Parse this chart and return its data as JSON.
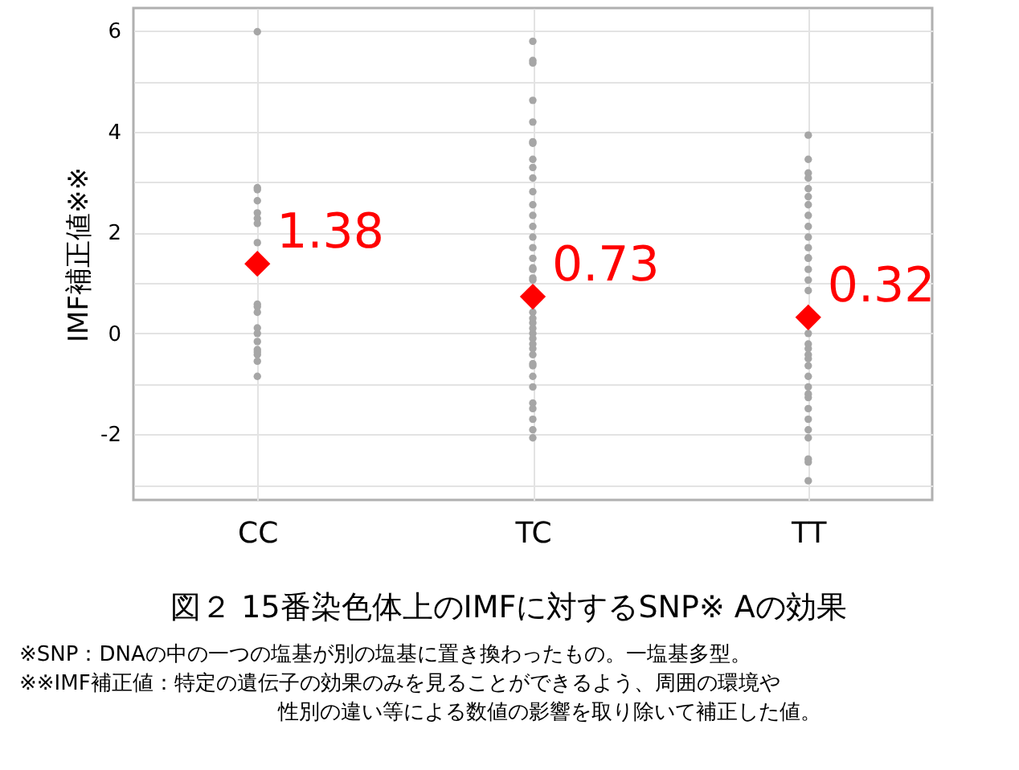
{
  "chart_data": {
    "type": "scatter",
    "title": "図２ 15番染色体上のIMFに対するSNP※ Aの効果",
    "ylabel": "IMF補正値※※",
    "categories": [
      "CC",
      "TC",
      "TT"
    ],
    "ylim": [
      -3.3,
      6.45
    ],
    "yticks": [
      {
        "value": -3,
        "label": null
      },
      -2,
      {
        "value": -1,
        "label": null
      },
      0,
      {
        "value": 1,
        "label": null
      },
      2,
      {
        "value": 3,
        "label": null
      },
      4,
      {
        "value": 5,
        "label": null
      },
      6
    ],
    "grid": true,
    "series": [
      {
        "color": "#a6a6a6",
        "marker": "circle",
        "x": [
          "CC",
          "CC",
          "CC",
          "CC",
          "CC",
          "CC",
          "CC",
          "CC",
          "CC",
          "CC",
          "CC",
          "CC",
          "CC",
          "CC",
          "CC",
          "CC",
          "CC",
          "CC",
          "CC",
          "TC",
          "TC",
          "TC",
          "TC",
          "TC",
          "TC",
          "TC",
          "TC",
          "TC",
          "TC",
          "TC",
          "TC",
          "TC",
          "TC",
          "TC",
          "TC",
          "TC",
          "TC",
          "TC",
          "TC",
          "TC",
          "TC",
          "TC",
          "TC",
          "TC",
          "TC",
          "TC",
          "TC",
          "TC",
          "TC",
          "TC",
          "TC",
          "TC",
          "TC",
          "TC",
          "TC",
          "TC",
          "TC",
          "TC",
          "TT",
          "TT",
          "TT",
          "TT",
          "TT",
          "TT",
          "TT",
          "TT",
          "TT",
          "TT",
          "TT",
          "TT",
          "TT",
          "TT",
          "TT",
          "TT",
          "TT",
          "TT",
          "TT",
          "TT",
          "TT",
          "TT",
          "TT",
          "TT",
          "TT",
          "TT",
          "TT",
          "TT",
          "TT",
          "TT",
          "TT",
          "TT",
          "TT"
        ],
        "values": [
          5.98,
          2.89,
          2.85,
          2.63,
          2.39,
          2.28,
          2.18,
          1.8,
          0.58,
          0.53,
          0.42,
          0.11,
          0.0,
          -0.16,
          -0.32,
          -0.37,
          -0.42,
          -0.55,
          -0.85,
          5.79,
          5.41,
          5.36,
          4.62,
          4.19,
          3.8,
          3.77,
          3.45,
          3.29,
          3.08,
          2.81,
          2.55,
          2.34,
          2.12,
          1.91,
          1.7,
          1.49,
          1.27,
          1.06,
          0.42,
          0.21,
          0.0,
          -0.21,
          -0.42,
          -0.64,
          -0.85,
          -1.06,
          -1.38,
          -1.49,
          -1.7,
          -1.91,
          -2.07,
          0.3,
          1.1,
          -0.3,
          -0.6,
          0.1,
          1.3,
          -0.1,
          3.93,
          3.45,
          3.18,
          3.08,
          2.87,
          2.71,
          2.55,
          2.34,
          2.12,
          1.91,
          1.7,
          1.49,
          1.27,
          1.06,
          0.85,
          0.0,
          -0.21,
          -0.42,
          -0.64,
          -0.85,
          -1.06,
          -1.27,
          -1.49,
          -1.7,
          -1.91,
          -2.07,
          -2.49,
          -2.55,
          -2.92,
          -0.3,
          -0.5,
          1.5,
          -1.2
        ]
      },
      {
        "color": "#ff0000",
        "marker": "diamond",
        "x": [
          "CC",
          "TC",
          "TT"
        ],
        "values": [
          1.38,
          0.73,
          0.32
        ],
        "value_labels": [
          "1.38",
          "0.73",
          "0.32"
        ]
      }
    ],
    "annotations": [
      "※SNP：DNAの中の一つの塩基が別の塩基に置き換わったもの。一塩基多型。",
      "※※IMF補正値：特定の遺伝子の効果のみを見ることができるよう、周囲の環境や性別の違い等による数値の影響を取り除いて補正した値。"
    ]
  }
}
